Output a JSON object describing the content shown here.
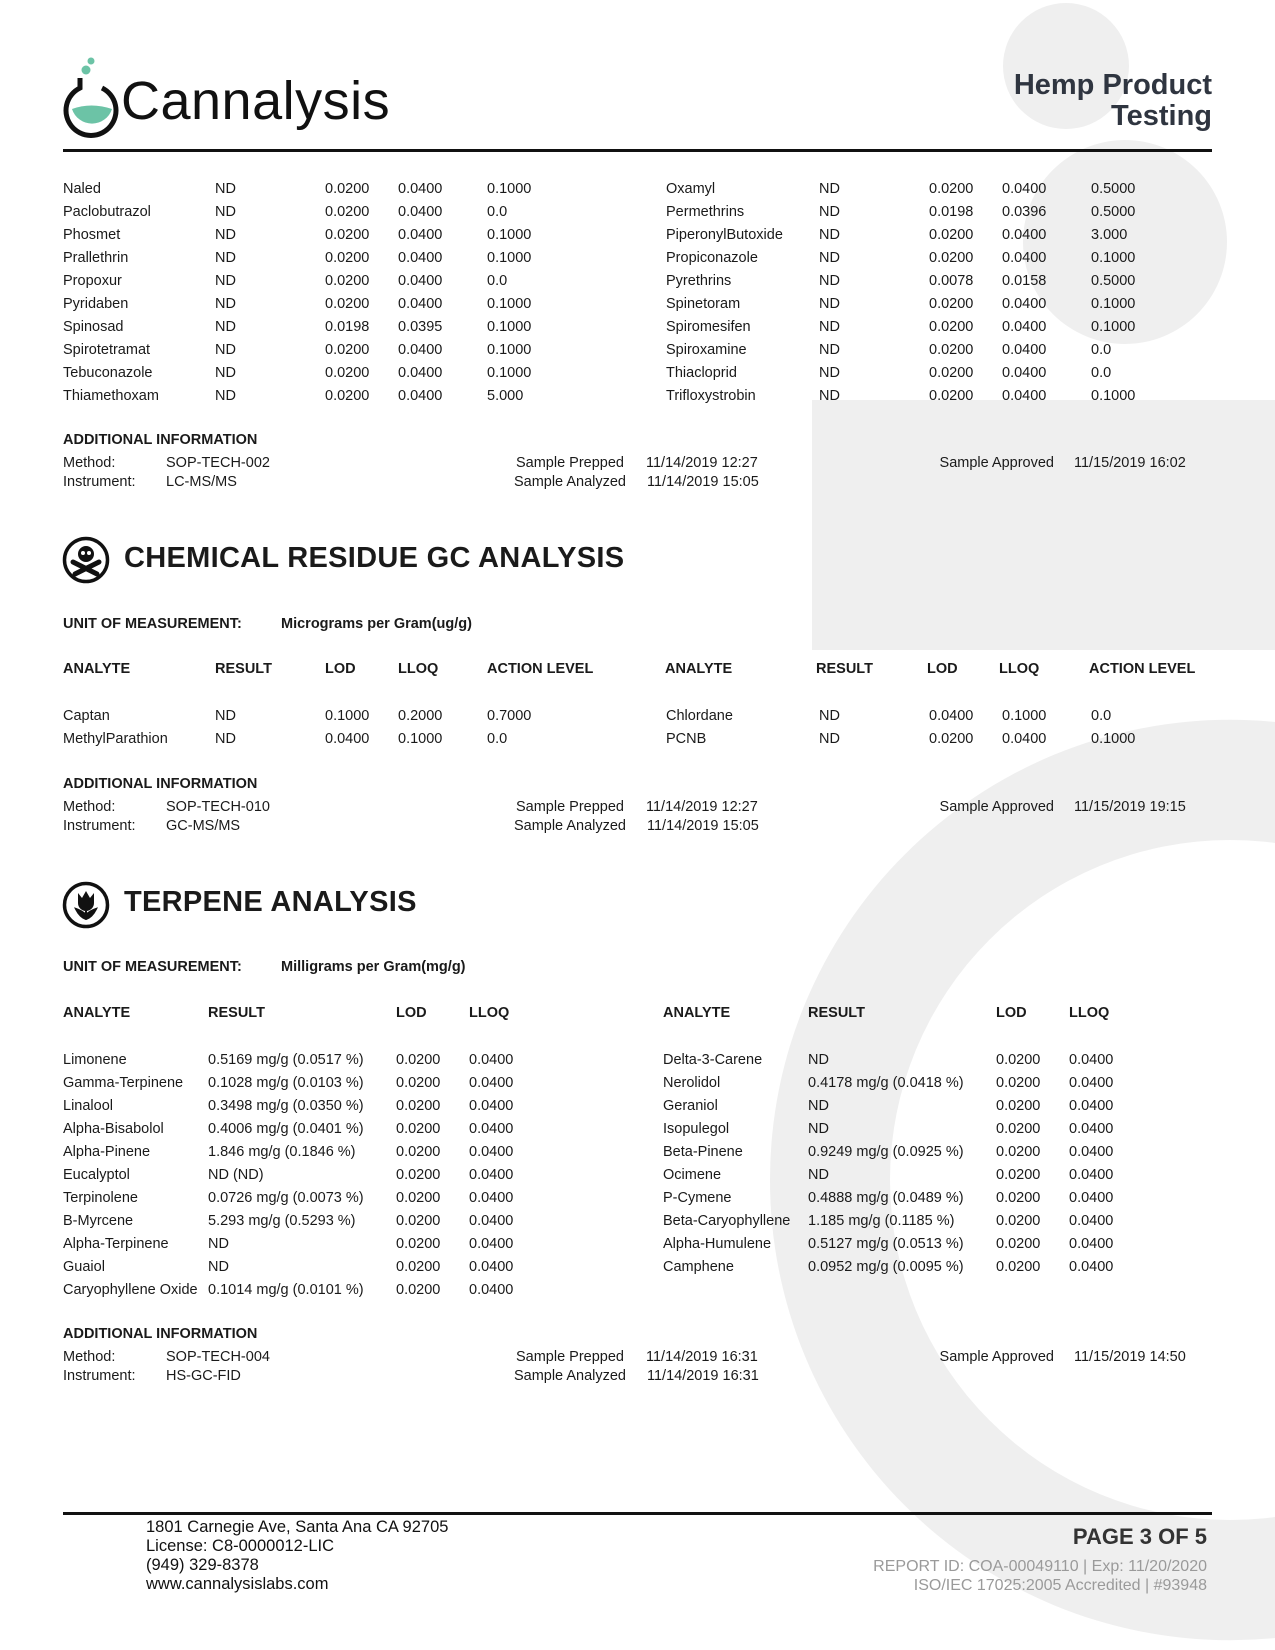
{
  "header": {
    "brand": "Cannalysis",
    "title_line1": "Hemp Product",
    "title_line2": "Testing",
    "brand_color": "#6cc3a6"
  },
  "pesticide_lc": {
    "left_rows": [
      [
        "Naled",
        "ND",
        "0.0200",
        "0.0400",
        "0.1000"
      ],
      [
        "Paclobutrazol",
        "ND",
        "0.0200",
        "0.0400",
        "0.0"
      ],
      [
        "Phosmet",
        "ND",
        "0.0200",
        "0.0400",
        "0.1000"
      ],
      [
        "Prallethrin",
        "ND",
        "0.0200",
        "0.0400",
        "0.1000"
      ],
      [
        "Propoxur",
        "ND",
        "0.0200",
        "0.0400",
        "0.0"
      ],
      [
        "Pyridaben",
        "ND",
        "0.0200",
        "0.0400",
        "0.1000"
      ],
      [
        "Spinosad",
        "ND",
        "0.0198",
        "0.0395",
        "0.1000"
      ],
      [
        "Spirotetramat",
        "ND",
        "0.0200",
        "0.0400",
        "0.1000"
      ],
      [
        "Tebuconazole",
        "ND",
        "0.0200",
        "0.0400",
        "0.1000"
      ],
      [
        "Thiamethoxam",
        "ND",
        "0.0200",
        "0.0400",
        "5.000"
      ]
    ],
    "right_rows": [
      [
        "Oxamyl",
        "ND",
        "0.0200",
        "0.0400",
        "0.5000"
      ],
      [
        "Permethrins",
        "ND",
        "0.0198",
        "0.0396",
        "0.5000"
      ],
      [
        "PiperonylButoxide",
        "ND",
        "0.0200",
        "0.0400",
        "3.000"
      ],
      [
        "Propiconazole",
        "ND",
        "0.0200",
        "0.0400",
        "0.1000"
      ],
      [
        "Pyrethrins",
        "ND",
        "0.0078",
        "0.0158",
        "0.5000"
      ],
      [
        "Spinetoram",
        "ND",
        "0.0200",
        "0.0400",
        "0.1000"
      ],
      [
        "Spiromesifen",
        "ND",
        "0.0200",
        "0.0400",
        "0.1000"
      ],
      [
        "Spiroxamine",
        "ND",
        "0.0200",
        "0.0400",
        "0.0"
      ],
      [
        "Thiacloprid",
        "ND",
        "0.0200",
        "0.0400",
        "0.0"
      ],
      [
        "Trifloxystrobin",
        "ND",
        "0.0200",
        "0.0400",
        "0.1000"
      ]
    ],
    "info": {
      "heading": "ADDITIONAL INFORMATION",
      "method_label": "Method:",
      "method": "SOP-TECH-002",
      "instrument_label": "Instrument:",
      "instrument": "LC-MS/MS",
      "prepped_label": "Sample Prepped",
      "prepped": "11/14/2019 12:27",
      "analyzed_label": "Sample Analyzed",
      "analyzed": "11/14/2019 15:05",
      "approved_label": "Sample Approved",
      "approved": "11/15/2019 16:02"
    }
  },
  "gc": {
    "title": "CHEMICAL RESIDUE GC ANALYSIS",
    "icon": "skull-crossbones-icon",
    "unit_label": "UNIT OF MEASUREMENT:",
    "unit": "Micrograms per Gram(ug/g)",
    "columns": [
      "ANALYTE",
      "RESULT",
      "LOD",
      "LLOQ",
      "ACTION LEVEL"
    ],
    "left_rows": [
      [
        "Captan",
        "ND",
        "0.1000",
        "0.2000",
        "0.7000"
      ],
      [
        "MethylParathion",
        "ND",
        "0.0400",
        "0.1000",
        "0.0"
      ]
    ],
    "right_rows": [
      [
        "Chlordane",
        "ND",
        "0.0400",
        "0.1000",
        "0.0"
      ],
      [
        "PCNB",
        "ND",
        "0.0200",
        "0.0400",
        "0.1000"
      ]
    ],
    "info": {
      "heading": "ADDITIONAL INFORMATION",
      "method_label": "Method:",
      "method": "SOP-TECH-010",
      "instrument_label": "Instrument:",
      "instrument": "GC-MS/MS",
      "prepped_label": "Sample Prepped",
      "prepped": "11/14/2019 12:27",
      "analyzed_label": "Sample Analyzed",
      "analyzed": "11/14/2019 15:05",
      "approved_label": "Sample Approved",
      "approved": "11/15/2019 19:15"
    }
  },
  "terpene": {
    "title": "TERPENE ANALYSIS",
    "icon": "tulip-icon",
    "unit_label": "UNIT OF MEASUREMENT:",
    "unit": "Milligrams per Gram(mg/g)",
    "columns": [
      "ANALYTE",
      "RESULT",
      "LOD",
      "LLOQ"
    ],
    "left_rows": [
      [
        "Limonene",
        "0.5169 mg/g (0.0517 %)",
        "0.0200",
        "0.0400"
      ],
      [
        "Gamma-Terpinene",
        "0.1028 mg/g (0.0103 %)",
        "0.0200",
        "0.0400"
      ],
      [
        "Linalool",
        "0.3498 mg/g (0.0350 %)",
        "0.0200",
        "0.0400"
      ],
      [
        "Alpha-Bisabolol",
        "0.4006 mg/g (0.0401 %)",
        "0.0200",
        "0.0400"
      ],
      [
        "Alpha-Pinene",
        "1.846 mg/g (0.1846 %)",
        "0.0200",
        "0.0400"
      ],
      [
        "Eucalyptol",
        "ND (ND)",
        "0.0200",
        "0.0400"
      ],
      [
        "Terpinolene",
        "0.0726 mg/g (0.0073 %)",
        "0.0200",
        "0.0400"
      ],
      [
        "B-Myrcene",
        "5.293 mg/g (0.5293 %)",
        "0.0200",
        "0.0400"
      ],
      [
        "Alpha-Terpinene",
        "ND",
        "0.0200",
        "0.0400"
      ],
      [
        "Guaiol",
        "ND",
        "0.0200",
        "0.0400"
      ],
      [
        "Caryophyllene Oxide",
        "0.1014 mg/g (0.0101 %)",
        "0.0200",
        "0.0400"
      ]
    ],
    "right_rows": [
      [
        "Delta-3-Carene",
        "ND",
        "0.0200",
        "0.0400"
      ],
      [
        "Nerolidol",
        "0.4178 mg/g (0.0418 %)",
        "0.0200",
        "0.0400"
      ],
      [
        "Geraniol",
        "ND",
        "0.0200",
        "0.0400"
      ],
      [
        "Isopulegol",
        "ND",
        "0.0200",
        "0.0400"
      ],
      [
        "Beta-Pinene",
        "0.9249 mg/g (0.0925 %)",
        "0.0200",
        "0.0400"
      ],
      [
        "Ocimene",
        "ND",
        "0.0200",
        "0.0400"
      ],
      [
        "P-Cymene",
        "0.4888 mg/g (0.0489 %)",
        "0.0200",
        "0.0400"
      ],
      [
        "Beta-Caryophyllene",
        "1.185 mg/g (0.1185 %)",
        "0.0200",
        "0.0400"
      ],
      [
        "Alpha-Humulene",
        "0.5127 mg/g (0.0513 %)",
        "0.0200",
        "0.0400"
      ],
      [
        "Camphene",
        "0.0952 mg/g (0.0095 %)",
        "0.0200",
        "0.0400"
      ]
    ],
    "info": {
      "heading": "ADDITIONAL INFORMATION",
      "method_label": "Method:",
      "method": "SOP-TECH-004",
      "instrument_label": "Instrument:",
      "instrument": "HS-GC-FID",
      "prepped_label": "Sample Prepped",
      "prepped": "11/14/2019 16:31",
      "analyzed_label": "Sample Analyzed",
      "analyzed": "11/14/2019 16:31",
      "approved_label": "Sample Approved",
      "approved": "11/15/2019 14:50"
    }
  },
  "footer": {
    "address": "1801 Carnegie Ave, Santa Ana  CA 92705",
    "license": "License: C8-0000012-LIC",
    "phone": "(949) 329-8378",
    "website": "www.cannalysislabs.com",
    "page": "PAGE 3 OF 5",
    "report_id": "REPORT ID: COA-00049110 | Exp: 11/20/2020",
    "accreditation": "ISO/IEC 17025:2005 Accredited | #93948"
  }
}
